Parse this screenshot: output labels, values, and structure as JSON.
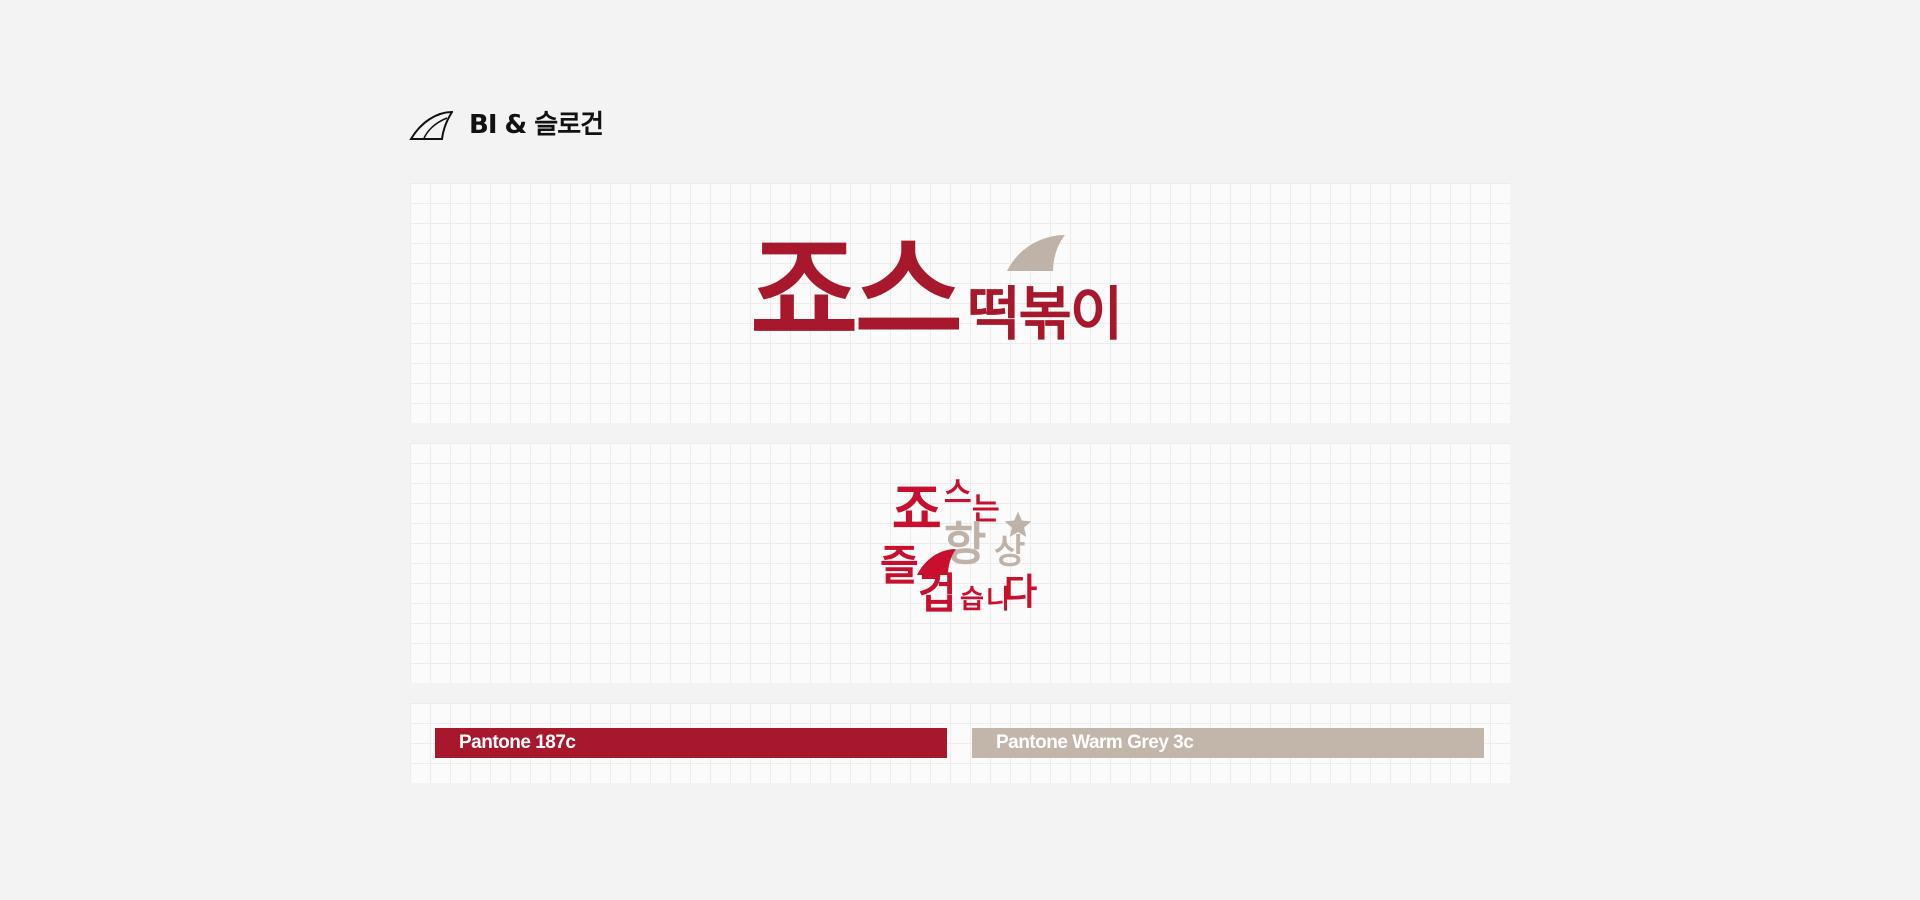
{
  "header": {
    "icon": "shark-fin-icon",
    "title": "BI & 슬로건"
  },
  "logo": {
    "main": "죠스",
    "sub": "떡볶이",
    "icon": "shark-fin-icon",
    "color": "#a8182d",
    "accent_color": "#bfb3a9"
  },
  "slogan": {
    "glyphs": [
      "죠",
      "스",
      "는",
      "항",
      "상",
      "즐",
      "겁",
      "습",
      "니",
      "다"
    ],
    "icons": [
      "star-icon",
      "shark-fin-icon"
    ],
    "colors": {
      "red": "#c8102e",
      "grey": "#bfb3a9"
    }
  },
  "colors": [
    {
      "label": "Pantone 187c",
      "hex": "#a8182d"
    },
    {
      "label": "Pantone Warm Grey 3c",
      "hex": "#c2b6ab"
    }
  ]
}
